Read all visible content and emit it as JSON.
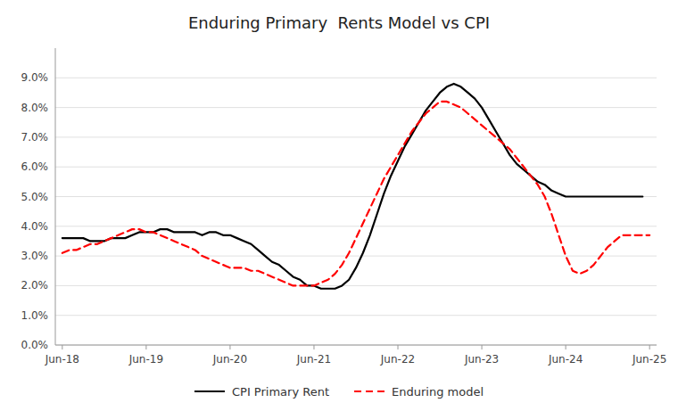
{
  "chart_data": {
    "type": "line",
    "title": "Enduring Primary  Rents Model vs CPI",
    "x": [
      0,
      1,
      2,
      3,
      4,
      5,
      6,
      7,
      8,
      9,
      10,
      11,
      12,
      13,
      14,
      15,
      16,
      17,
      18,
      19,
      20,
      21,
      22,
      23,
      24,
      25,
      26,
      27,
      28,
      29,
      30,
      31,
      32,
      33,
      34,
      35,
      36,
      37,
      38,
      39,
      40,
      41,
      42,
      43,
      44,
      45,
      46,
      47,
      48,
      49,
      50,
      51,
      52,
      53,
      54,
      55,
      56,
      57,
      58,
      59,
      60,
      61,
      62,
      63,
      64,
      65,
      66,
      67,
      68,
      69,
      70,
      71,
      72,
      73,
      74,
      75,
      76,
      77,
      78,
      79,
      80,
      81,
      82,
      83,
      84
    ],
    "series": [
      {
        "name": "CPI Primary Rent",
        "color": "#000000",
        "line_style": "solid",
        "values": [
          0.036,
          0.036,
          0.036,
          0.036,
          0.035,
          0.035,
          0.035,
          0.036,
          0.036,
          0.036,
          0.037,
          0.038,
          0.038,
          0.038,
          0.039,
          0.039,
          0.038,
          0.038,
          0.038,
          0.038,
          0.037,
          0.038,
          0.038,
          0.037,
          0.037,
          0.036,
          0.035,
          0.034,
          0.032,
          0.03,
          0.028,
          0.027,
          0.025,
          0.023,
          0.022,
          0.02,
          0.02,
          0.019,
          0.019,
          0.019,
          0.02,
          0.022,
          0.026,
          0.031,
          0.037,
          0.044,
          0.051,
          0.057,
          0.062,
          0.067,
          0.071,
          0.075,
          0.079,
          0.082,
          0.085,
          0.087,
          0.088,
          0.087,
          0.085,
          0.083,
          0.08,
          0.076,
          0.072,
          0.068,
          0.064,
          0.061,
          0.059,
          0.057,
          0.055,
          0.054,
          0.052,
          0.051,
          0.05,
          0.05,
          0.05,
          0.05,
          0.05,
          0.05,
          0.05,
          0.05,
          0.05,
          0.05,
          0.05,
          0.05,
          null
        ]
      },
      {
        "name": "Enduring model",
        "color": "#ff0000",
        "line_style": "dashed",
        "values": [
          0.031,
          0.032,
          0.032,
          0.033,
          0.034,
          0.034,
          0.035,
          0.036,
          0.037,
          0.038,
          0.039,
          0.039,
          0.038,
          0.038,
          0.037,
          0.036,
          0.035,
          0.034,
          0.033,
          0.032,
          0.03,
          0.029,
          0.028,
          0.027,
          0.026,
          0.026,
          0.026,
          0.025,
          0.025,
          0.024,
          0.023,
          0.022,
          0.021,
          0.02,
          0.02,
          0.02,
          0.02,
          0.021,
          0.022,
          0.024,
          0.027,
          0.031,
          0.036,
          0.041,
          0.046,
          0.051,
          0.056,
          0.06,
          0.064,
          0.068,
          0.072,
          0.075,
          0.078,
          0.08,
          0.082,
          0.082,
          0.081,
          0.08,
          0.078,
          0.076,
          0.074,
          0.072,
          0.07,
          0.068,
          0.066,
          0.063,
          0.06,
          0.057,
          0.054,
          0.05,
          0.044,
          0.037,
          0.03,
          0.025,
          0.024,
          0.025,
          0.027,
          0.03,
          0.033,
          0.035,
          0.037,
          0.037,
          0.037,
          0.037,
          0.037
        ]
      }
    ],
    "xlim": [
      -1,
      85
    ],
    "xticks": [
      {
        "value": 0,
        "label": "Jun-18"
      },
      {
        "value": 12,
        "label": "Jun-19"
      },
      {
        "value": 24,
        "label": "Jun-20"
      },
      {
        "value": 36,
        "label": "Jun-21"
      },
      {
        "value": 48,
        "label": "Jun-22"
      },
      {
        "value": 60,
        "label": "Jun-23"
      },
      {
        "value": 72,
        "label": "Jun-24"
      },
      {
        "value": 84,
        "label": "Jun-25"
      }
    ],
    "ylim": [
      0.0,
      0.1
    ],
    "yticks": [
      {
        "value": 0.0,
        "label": "0.0%"
      },
      {
        "value": 0.01,
        "label": "1.0%"
      },
      {
        "value": 0.02,
        "label": "2.0%"
      },
      {
        "value": 0.03,
        "label": "3.0%"
      },
      {
        "value": 0.04,
        "label": "4.0%"
      },
      {
        "value": 0.05,
        "label": "5.0%"
      },
      {
        "value": 0.06,
        "label": "6.0%"
      },
      {
        "value": 0.07,
        "label": "7.0%"
      },
      {
        "value": 0.08,
        "label": "8.0%"
      },
      {
        "value": 0.09,
        "label": "9.0%"
      }
    ],
    "grid": true,
    "legend": "bottom"
  }
}
